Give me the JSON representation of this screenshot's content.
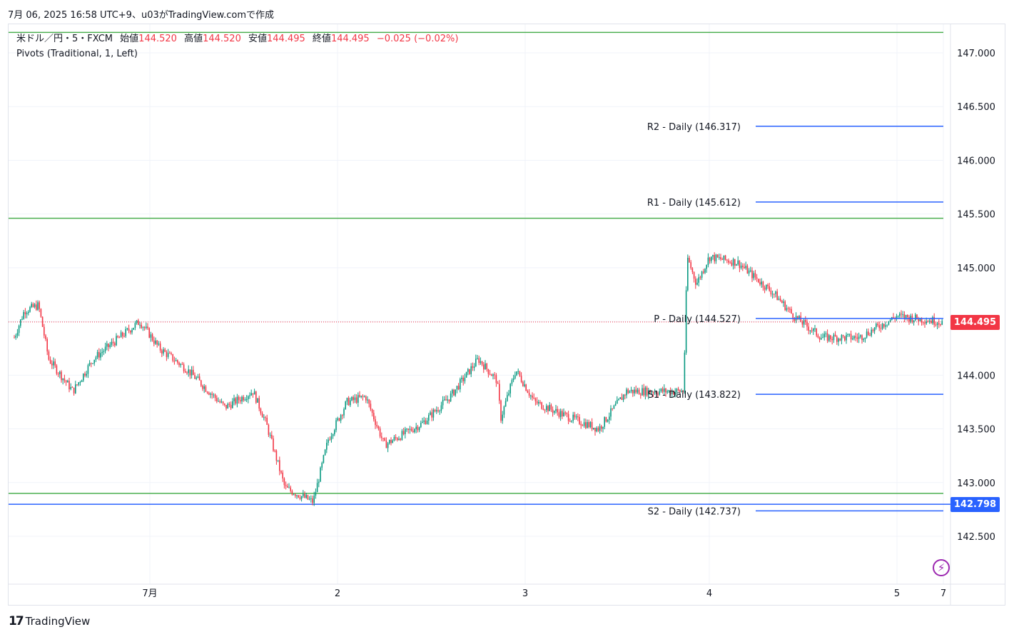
{
  "snapshot_caption": "7月 06, 2025 16:58 UTC+9、u03がTradingView.comで作成",
  "legend": {
    "symbol": "米ドル／円・5・FXCM",
    "open_label": "始値",
    "open_value": "144.520",
    "high_label": "高値",
    "high_value": "144.520",
    "low_label": "安値",
    "low_value": "144.495",
    "close_label": "終値",
    "close_value": "144.495",
    "change": "−0.025 (−0.02%)",
    "indicator": "Pivots (Traditional, 1, Left)"
  },
  "price_tags": {
    "last_price": "144.495",
    "blue_line_price": "142.798"
  },
  "brand": "TradingView",
  "colors": {
    "up": "#089981",
    "down": "#f23645",
    "pivot_line": "#2962ff",
    "green_line": "#4caf50",
    "price_tag_red": "#f23645",
    "price_tag_blue": "#2962ff",
    "grid": "#f0f3fa"
  },
  "chart_data": {
    "type": "candlestick",
    "symbol": "USD/JPY",
    "interval": "5",
    "y_ticks": [
      142.5,
      143.0,
      143.5,
      144.0,
      144.5,
      145.0,
      145.5,
      146.0,
      146.5,
      147.0
    ],
    "ylim": [
      142.1,
      147.2
    ],
    "x_ticks": [
      {
        "label": "7月",
        "day": 1
      },
      {
        "label": "2",
        "day": 2
      },
      {
        "label": "3",
        "day": 3
      },
      {
        "label": "4",
        "day": 4
      },
      {
        "label": "5",
        "day": 5
      },
      {
        "label": "7",
        "day": 7
      }
    ],
    "xlim_day": [
      0.33,
      5.25
    ],
    "pivot_levels": [
      {
        "name": "R2 - Daily",
        "value": 146.317,
        "label": "R2 - Daily (146.317)"
      },
      {
        "name": "R1 - Daily",
        "value": 145.612,
        "label": "R1 - Daily (145.612)"
      },
      {
        "name": "P - Daily",
        "value": 144.527,
        "label": "P - Daily (144.527)"
      },
      {
        "name": "S1 - Daily",
        "value": 143.822,
        "label": "S1 - Daily (143.822)"
      },
      {
        "name": "S2 - Daily",
        "value": 142.737,
        "label": "S2 - Daily (142.737)"
      }
    ],
    "horizontal_lines": [
      {
        "value": 147.19,
        "color": "green"
      },
      {
        "value": 145.46,
        "color": "green"
      },
      {
        "value": 142.9,
        "color": "green"
      },
      {
        "value": 142.798,
        "color": "blue"
      }
    ],
    "last_price": 144.495,
    "price_path": [
      {
        "day": 0.33,
        "price": 144.35
      },
      {
        "day": 0.38,
        "price": 144.6
      },
      {
        "day": 0.45,
        "price": 144.65
      },
      {
        "day": 0.5,
        "price": 144.15
      },
      {
        "day": 0.62,
        "price": 143.85
      },
      {
        "day": 0.72,
        "price": 144.15
      },
      {
        "day": 0.85,
        "price": 144.35
      },
      {
        "day": 0.95,
        "price": 144.5
      },
      {
        "day": 1.05,
        "price": 144.25
      },
      {
        "day": 1.2,
        "price": 144.05
      },
      {
        "day": 1.4,
        "price": 143.7
      },
      {
        "day": 1.55,
        "price": 143.85
      },
      {
        "day": 1.62,
        "price": 143.55
      },
      {
        "day": 1.72,
        "price": 142.95
      },
      {
        "day": 1.87,
        "price": 142.82
      },
      {
        "day": 1.95,
        "price": 143.4
      },
      {
        "day": 2.05,
        "price": 143.75
      },
      {
        "day": 2.15,
        "price": 143.8
      },
      {
        "day": 2.25,
        "price": 143.35
      },
      {
        "day": 2.45,
        "price": 143.55
      },
      {
        "day": 2.6,
        "price": 143.8
      },
      {
        "day": 2.75,
        "price": 144.15
      },
      {
        "day": 2.85,
        "price": 143.95
      },
      {
        "day": 2.87,
        "price": 143.6
      },
      {
        "day": 2.95,
        "price": 144.05
      },
      {
        "day": 3.05,
        "price": 143.75
      },
      {
        "day": 3.25,
        "price": 143.6
      },
      {
        "day": 3.4,
        "price": 143.5
      },
      {
        "day": 3.55,
        "price": 143.85
      },
      {
        "day": 3.75,
        "price": 143.85
      },
      {
        "day": 3.86,
        "price": 143.85
      },
      {
        "day": 3.88,
        "price": 145.1
      },
      {
        "day": 3.93,
        "price": 144.85
      },
      {
        "day": 4.0,
        "price": 145.1
      },
      {
        "day": 4.15,
        "price": 145.05
      },
      {
        "day": 4.35,
        "price": 144.75
      },
      {
        "day": 4.45,
        "price": 144.55
      },
      {
        "day": 4.6,
        "price": 144.35
      },
      {
        "day": 4.8,
        "price": 144.35
      },
      {
        "day": 5.0,
        "price": 144.55
      },
      {
        "day": 5.25,
        "price": 144.495
      }
    ]
  }
}
